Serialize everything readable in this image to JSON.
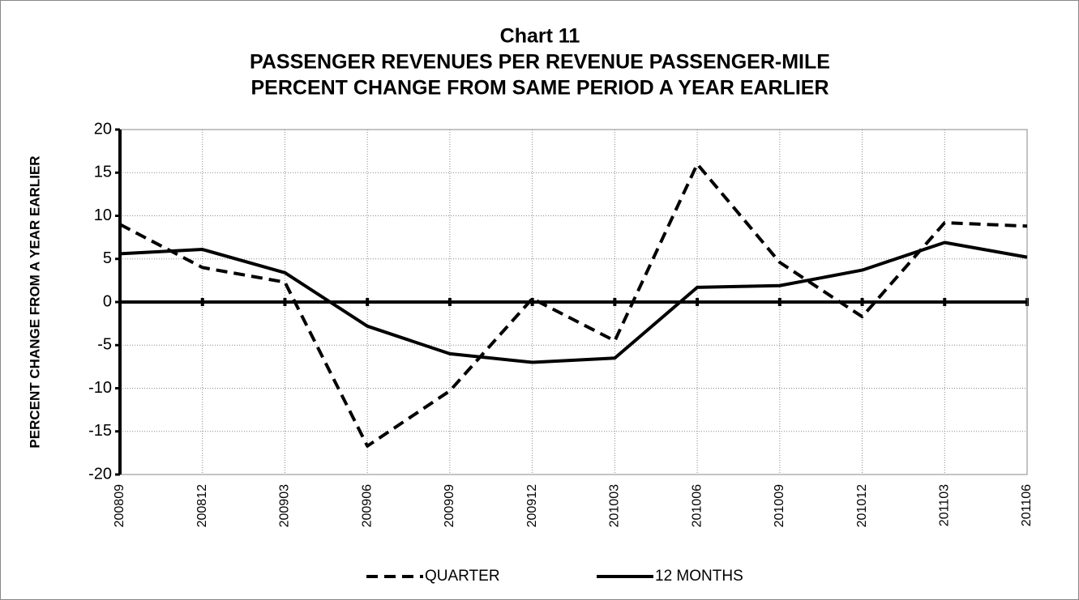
{
  "chart_data": {
    "type": "line",
    "title": [
      "Chart 11",
      "PASSENGER REVENUES PER REVENUE PASSENGER-MILE",
      "PERCENT CHANGE FROM SAME PERIOD A YEAR EARLIER"
    ],
    "y_label": "PERCENT CHANGE FROM A YEAR EARLIER",
    "categories": [
      "200809",
      "200812",
      "200903",
      "200906",
      "200909",
      "200912",
      "201003",
      "201006",
      "201009",
      "201012",
      "201103",
      "201106"
    ],
    "series": [
      {
        "name": "QUARTER",
        "color": "#000000",
        "style": "dashed",
        "values": [
          9.0,
          4.0,
          2.3,
          -16.7,
          -10.3,
          0.4,
          -4.5,
          16.0,
          4.6,
          -1.7,
          9.2,
          8.8
        ]
      },
      {
        "name": "12 MONTHS",
        "color": "#000000",
        "style": "solid",
        "values": [
          5.6,
          6.1,
          3.4,
          -2.8,
          -6.0,
          -7.0,
          -6.5,
          1.7,
          1.9,
          3.7,
          6.9,
          5.2
        ]
      }
    ],
    "ylim": [
      -20,
      20
    ],
    "yticks": [
      -20,
      -15,
      -10,
      -5,
      0,
      5,
      10,
      15,
      20
    ],
    "grid": true,
    "legend": "bottom"
  }
}
